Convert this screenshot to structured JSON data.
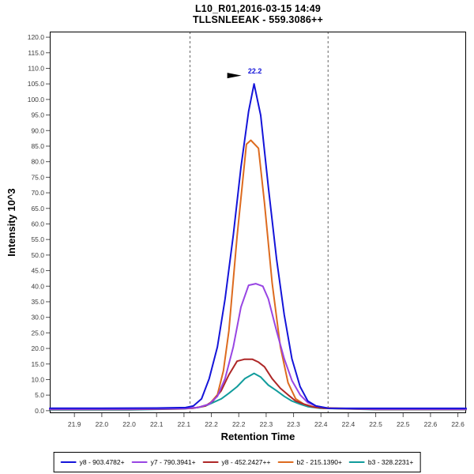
{
  "window": {
    "title_line1": "L10_R01,2016-03-15 14:49",
    "title_line2": "TLLSNLEEAK - 559.3086++"
  },
  "chart_data": {
    "type": "line",
    "title": "L10_R01,2016-03-15 14:49",
    "subtitle": "TLLSNLEEAK - 559.3086++",
    "xlabel": "Retention Time",
    "ylabel": "Intensity 10^3",
    "xlim": [
      21.855,
      22.615
    ],
    "ylim": [
      -0.8,
      121.8
    ],
    "grid": false,
    "legend_position": "bottom",
    "x_ticks": {
      "start": 21.9,
      "step": 0.05,
      "labels": [
        "21.9",
        "22.0",
        "22.0",
        "22.1",
        "22.1",
        "22.2",
        "22.2",
        "22.3",
        "22.3",
        "22.4",
        "22.4",
        "22.5",
        "22.5",
        "22.6",
        "22.6"
      ]
    },
    "y_ticks": {
      "start": 0,
      "step": 5,
      "labels": [
        "0.0",
        "5.0",
        "10.0",
        "15.0",
        "20.0",
        "25.0",
        "30.0",
        "35.0",
        "40.0",
        "45.0",
        "50.0",
        "55.0",
        "60.0",
        "65.0",
        "70.0",
        "75.0",
        "80.0",
        "85.0",
        "90.0",
        "95.0",
        "100.0",
        "105.0",
        "110.0",
        "115.0",
        "120.0"
      ]
    },
    "peak_boundaries": [
      22.111,
      22.363
    ],
    "annotation": {
      "text": "22.2",
      "x": 22.228,
      "y": 105.0
    },
    "colors": {
      "frame": "#000000",
      "tick": "#555555",
      "tick_label": "#3c3c3c",
      "boundary": "#666666",
      "annotation_text": "#1414d9",
      "arrow": "#000000",
      "background": "#ffffff"
    },
    "series": [
      {
        "name": "y8 - 903.4782+",
        "color": "#1414d9",
        "points": [
          [
            21.855,
            0.8
          ],
          [
            21.95,
            0.8
          ],
          [
            22.05,
            0.85
          ],
          [
            22.103,
            1.0
          ],
          [
            22.117,
            1.5
          ],
          [
            22.132,
            3.8
          ],
          [
            22.146,
            10.3
          ],
          [
            22.161,
            20.5
          ],
          [
            22.175,
            35.9
          ],
          [
            22.19,
            56.4
          ],
          [
            22.204,
            78.2
          ],
          [
            22.218,
            96.2
          ],
          [
            22.228,
            105.0
          ],
          [
            22.24,
            94.9
          ],
          [
            22.254,
            71.8
          ],
          [
            22.269,
            48.7
          ],
          [
            22.283,
            30.8
          ],
          [
            22.297,
            16.7
          ],
          [
            22.312,
            7.7
          ],
          [
            22.326,
            3.1
          ],
          [
            22.341,
            1.5
          ],
          [
            22.363,
            0.8
          ],
          [
            22.45,
            0.75
          ],
          [
            22.615,
            0.75
          ]
        ]
      },
      {
        "name": "y7 - 790.3941+",
        "color": "#9845e3",
        "points": [
          [
            21.855,
            0.5
          ],
          [
            22.0,
            0.5
          ],
          [
            22.1,
            0.7
          ],
          [
            22.125,
            1.0
          ],
          [
            22.146,
            2.1
          ],
          [
            22.161,
            4.6
          ],
          [
            22.175,
            10.3
          ],
          [
            22.19,
            20.5
          ],
          [
            22.204,
            33.3
          ],
          [
            22.218,
            40.3
          ],
          [
            22.231,
            40.8
          ],
          [
            22.244,
            40.0
          ],
          [
            22.254,
            35.9
          ],
          [
            22.269,
            25.6
          ],
          [
            22.283,
            16.7
          ],
          [
            22.297,
            9.7
          ],
          [
            22.312,
            5.1
          ],
          [
            22.326,
            2.6
          ],
          [
            22.341,
            1.5
          ],
          [
            22.363,
            0.8
          ],
          [
            22.45,
            0.5
          ],
          [
            22.615,
            0.5
          ]
        ]
      },
      {
        "name": "y8 - 452.2427++",
        "color": "#ae2727",
        "points": [
          [
            21.855,
            0.4
          ],
          [
            22.0,
            0.4
          ],
          [
            22.09,
            0.6
          ],
          [
            22.117,
            0.8
          ],
          [
            22.139,
            1.5
          ],
          [
            22.153,
            3.1
          ],
          [
            22.168,
            6.4
          ],
          [
            22.182,
            11.5
          ],
          [
            22.197,
            15.9
          ],
          [
            22.21,
            16.5
          ],
          [
            22.225,
            16.5
          ],
          [
            22.236,
            15.6
          ],
          [
            22.247,
            14.1
          ],
          [
            22.261,
            10.3
          ],
          [
            22.276,
            7.2
          ],
          [
            22.29,
            5.1
          ],
          [
            22.304,
            3.1
          ],
          [
            22.319,
            2.1
          ],
          [
            22.333,
            1.3
          ],
          [
            22.355,
            0.8
          ],
          [
            22.45,
            0.4
          ],
          [
            22.615,
            0.4
          ]
        ]
      },
      {
        "name": "b2 - 215.1390+",
        "color": "#dd6b1f",
        "points": [
          [
            21.855,
            0.6
          ],
          [
            22.0,
            0.6
          ],
          [
            22.1,
            0.8
          ],
          [
            22.125,
            1.0
          ],
          [
            22.146,
            2.1
          ],
          [
            22.161,
            5.1
          ],
          [
            22.172,
            12.8
          ],
          [
            22.182,
            25.6
          ],
          [
            22.197,
            56.0
          ],
          [
            22.214,
            85.6
          ],
          [
            22.222,
            86.9
          ],
          [
            22.236,
            84.3
          ],
          [
            22.247,
            66.7
          ],
          [
            22.261,
            41.0
          ],
          [
            22.276,
            20.5
          ],
          [
            22.29,
            9.0
          ],
          [
            22.304,
            3.8
          ],
          [
            22.319,
            2.1
          ],
          [
            22.341,
            1.0
          ],
          [
            22.42,
            0.6
          ],
          [
            22.615,
            0.6
          ]
        ]
      },
      {
        "name": "b3 - 328.2231+",
        "color": "#119c9c",
        "points": [
          [
            21.855,
            0.3
          ],
          [
            22.0,
            0.3
          ],
          [
            22.1,
            0.6
          ],
          [
            22.125,
            1.0
          ],
          [
            22.139,
            1.5
          ],
          [
            22.153,
            2.6
          ],
          [
            22.168,
            3.8
          ],
          [
            22.182,
            5.6
          ],
          [
            22.197,
            7.7
          ],
          [
            22.211,
            10.3
          ],
          [
            22.228,
            12.0
          ],
          [
            22.24,
            10.8
          ],
          [
            22.254,
            8.2
          ],
          [
            22.269,
            6.4
          ],
          [
            22.283,
            4.6
          ],
          [
            22.297,
            3.1
          ],
          [
            22.312,
            2.1
          ],
          [
            22.326,
            1.3
          ],
          [
            22.348,
            0.8
          ],
          [
            22.45,
            0.35
          ],
          [
            22.615,
            0.35
          ]
        ]
      }
    ]
  }
}
